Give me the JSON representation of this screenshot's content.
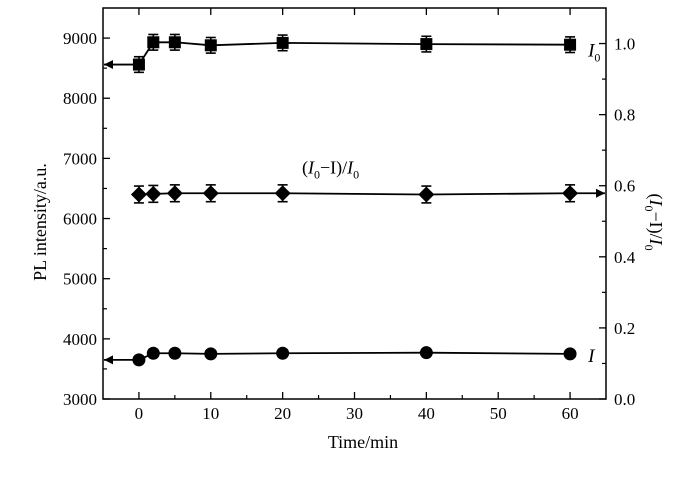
{
  "chart_data": {
    "type": "scatter",
    "xlabel": "Time/min",
    "ylabel": "PL intensity/a.u.",
    "y2label": "(I0−I)/I0",
    "xlim": [
      -5,
      65
    ],
    "ylim": [
      3000,
      9500
    ],
    "y2lim": [
      0.0,
      1.1
    ],
    "x_ticks": [
      "0",
      "10",
      "20",
      "30",
      "40",
      "50",
      "60"
    ],
    "y_ticks": [
      "3000",
      "4000",
      "5000",
      "6000",
      "7000",
      "8000",
      "9000"
    ],
    "y2_ticks": [
      "0.0",
      "0.2",
      "0.4",
      "0.6",
      "0.8",
      "1.0"
    ],
    "grid": false,
    "series": [
      {
        "name": "I0",
        "axis": "left",
        "marker": "square",
        "x": [
          0,
          2,
          5,
          10,
          20,
          40,
          60
        ],
        "y": [
          8560,
          8930,
          8930,
          8880,
          8920,
          8900,
          8890
        ],
        "err": [
          130,
          130,
          130,
          130,
          130,
          130,
          130
        ],
        "label_main": "I",
        "label_sub": "0"
      },
      {
        "name": "(I0−I)/I0",
        "axis": "left",
        "marker": "diamond",
        "x": [
          0,
          2,
          5,
          10,
          20,
          40,
          60
        ],
        "y": [
          6400,
          6410,
          6420,
          6420,
          6420,
          6400,
          6420
        ],
        "err": [
          140,
          140,
          140,
          140,
          140,
          140,
          140
        ],
        "label_parts": [
          "(",
          "I",
          "0",
          "−I)/",
          "I",
          "0"
        ]
      },
      {
        "name": "I",
        "axis": "left",
        "marker": "circle",
        "x": [
          0,
          2,
          5,
          10,
          20,
          40,
          60
        ],
        "y": [
          3650,
          3760,
          3760,
          3750,
          3760,
          3770,
          3750
        ],
        "err": [
          0,
          0,
          0,
          0,
          0,
          0,
          0
        ],
        "label_main": "I"
      }
    ]
  }
}
